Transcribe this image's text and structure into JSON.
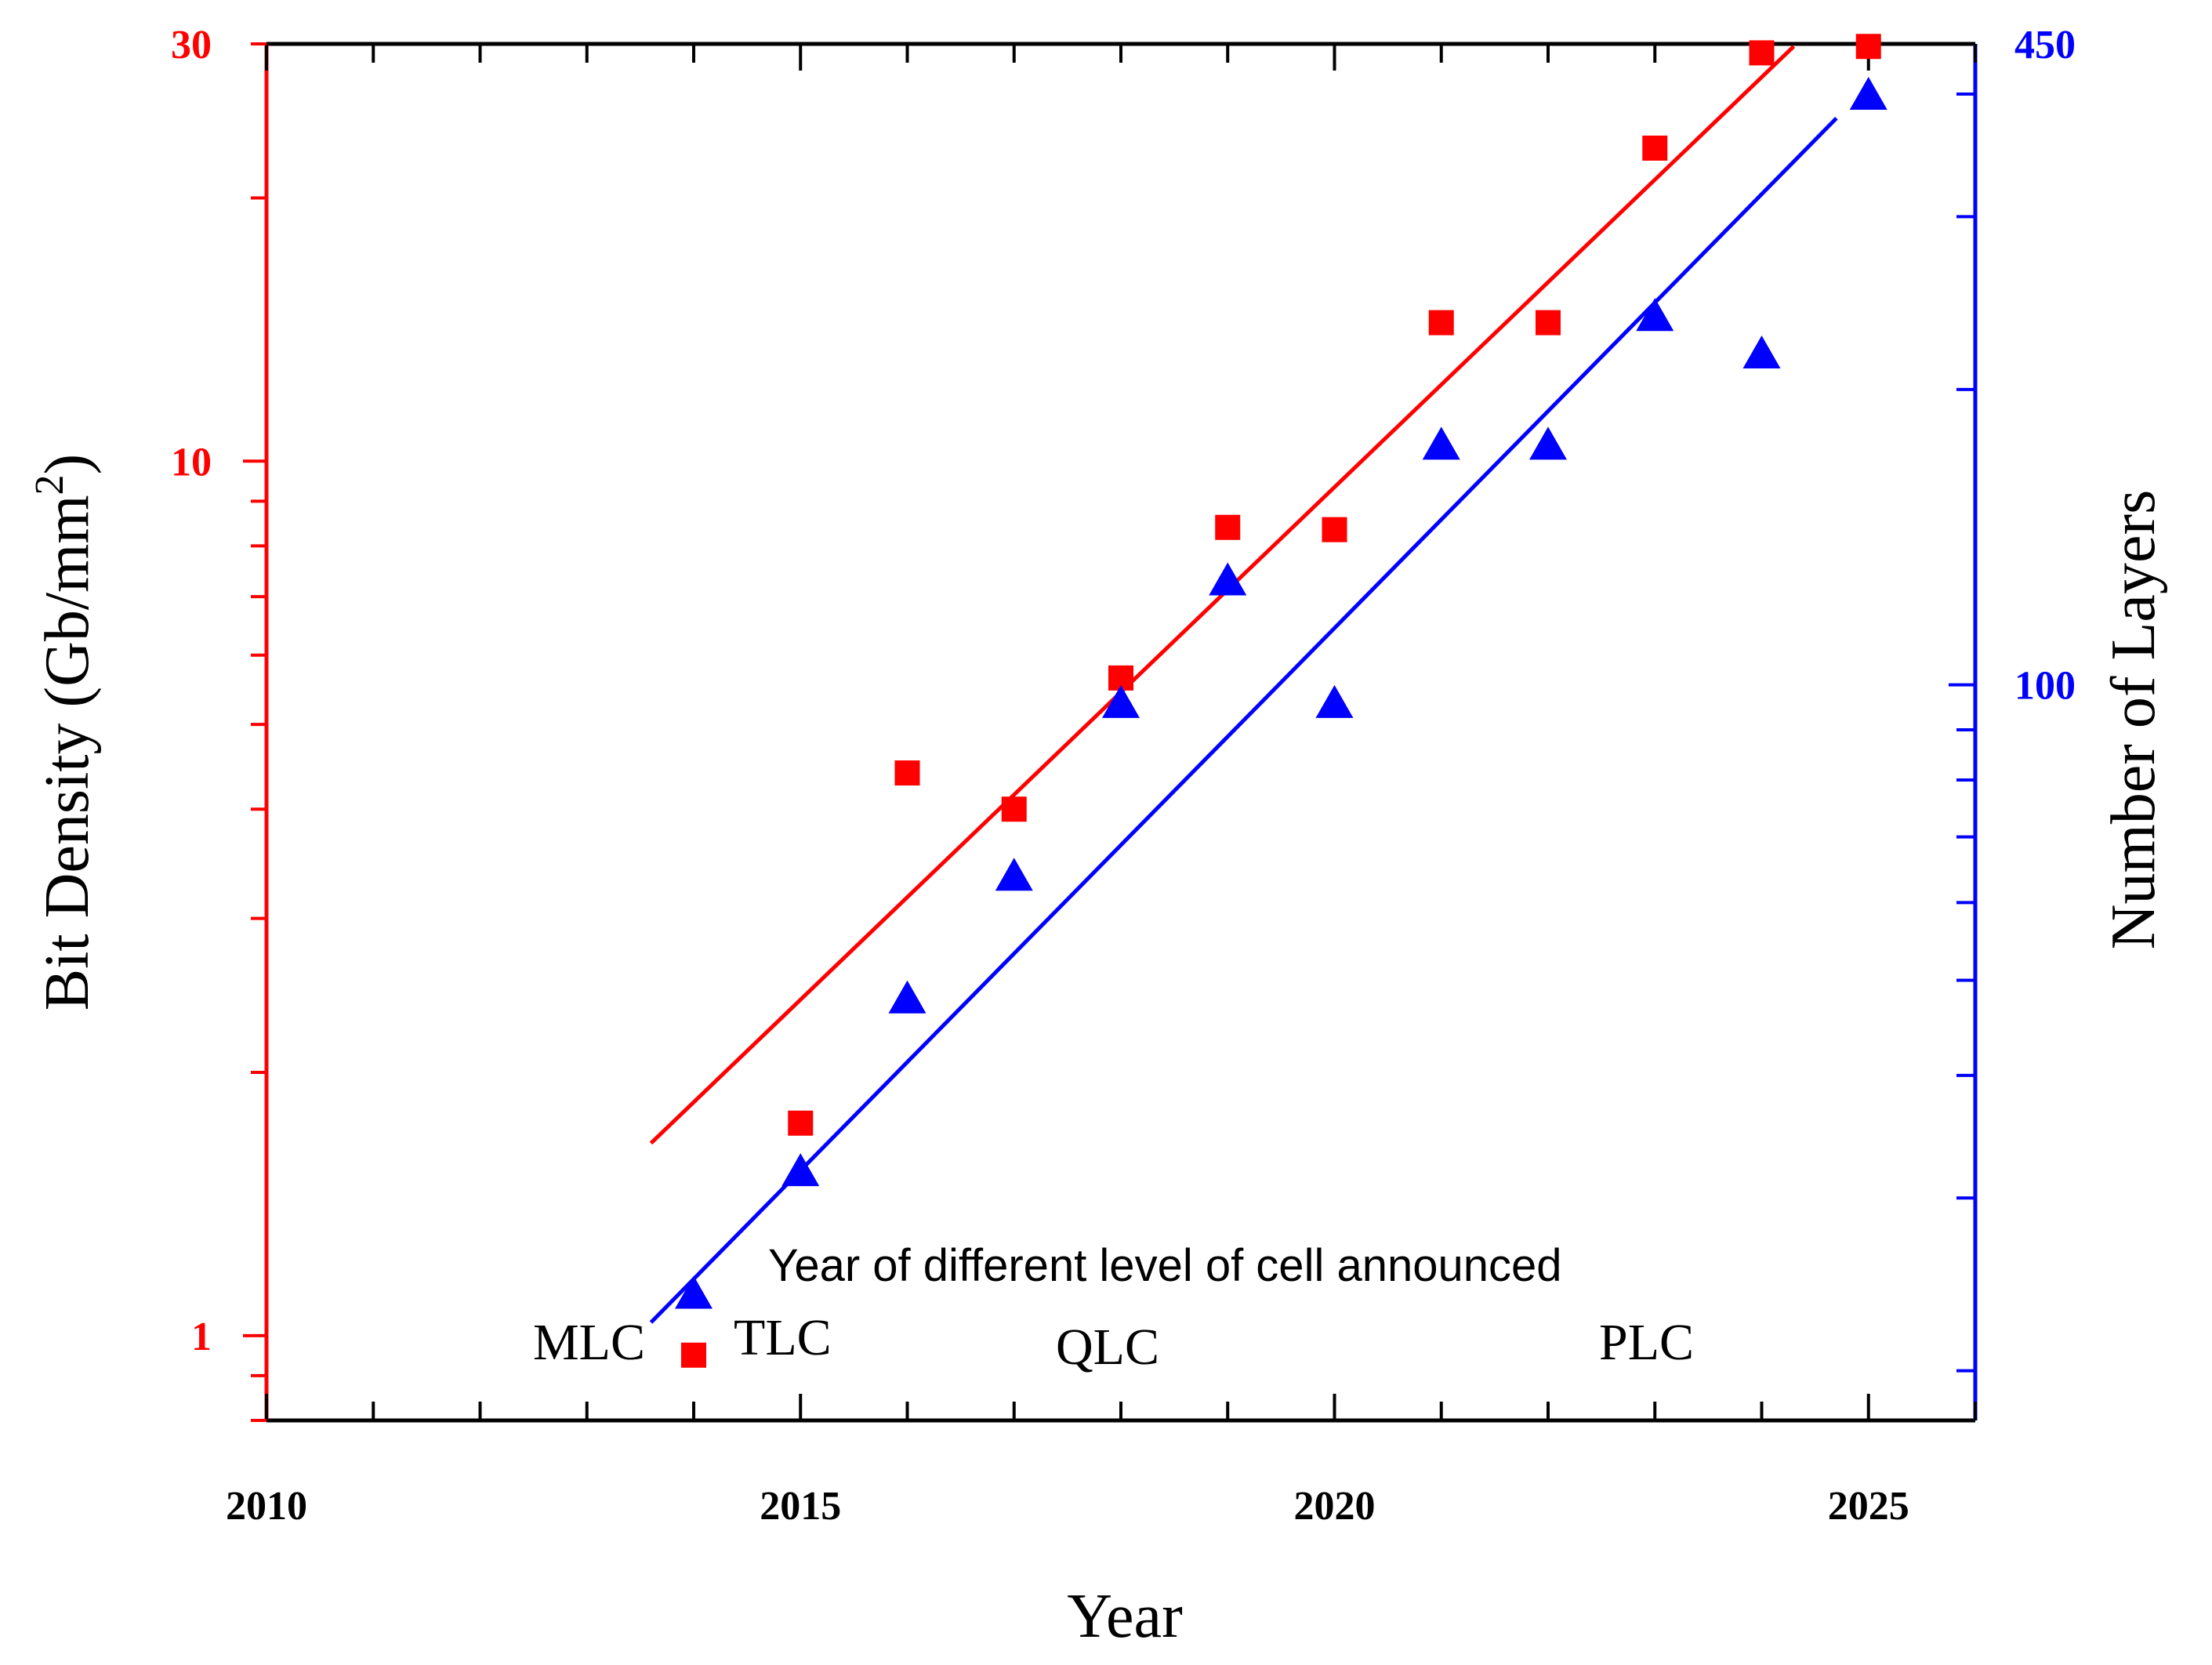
{
  "chart_data": {
    "type": "scatter",
    "xlabel": "Year",
    "xlim": [
      2010,
      2026
    ],
    "x_ticks": [
      "2010",
      "2015",
      "2020",
      "2025"
    ],
    "y_left": {
      "label_main": "Bit Density (Gb/mm",
      "label_sup": "2",
      "label_end": ")",
      "scale": "log",
      "lim": [
        0.8,
        30
      ],
      "tick_labels": [
        {
          "value": 1,
          "text": "1"
        },
        {
          "value": 10,
          "text": "10"
        },
        {
          "value": 30,
          "text": "30"
        }
      ],
      "color": "#ff0000"
    },
    "y_right": {
      "label": "Number of Layers",
      "scale": "log",
      "lim": [
        17.8,
        450
      ],
      "tick_labels": [
        {
          "value": 100,
          "text": "100"
        },
        {
          "value": 450,
          "text": "450"
        }
      ],
      "color": "#0000ff"
    },
    "series": [
      {
        "axis": "left",
        "marker": "square",
        "color": "#ff0000",
        "points": [
          [
            2014,
            0.95
          ],
          [
            2015,
            1.75
          ],
          [
            2016,
            4.4
          ],
          [
            2017,
            4.0
          ],
          [
            2018,
            5.65
          ],
          [
            2019,
            8.4
          ],
          [
            2020,
            8.35
          ],
          [
            2021,
            14.4
          ],
          [
            2022,
            14.4
          ],
          [
            2023,
            22.8
          ],
          [
            2024,
            29.3
          ],
          [
            2025,
            29.8
          ]
        ],
        "fit": {
          "x": [
            2013.6,
            2024.3
          ],
          "y": [
            1.66,
            29.8
          ]
        }
      },
      {
        "axis": "right",
        "marker": "triangle",
        "color": "#0000ff",
        "points": [
          [
            2014,
            24
          ],
          [
            2015,
            32
          ],
          [
            2016,
            48
          ],
          [
            2017,
            64
          ],
          [
            2018,
            96
          ],
          [
            2019,
            128
          ],
          [
            2020,
            96
          ],
          [
            2021,
            176
          ],
          [
            2022,
            176
          ],
          [
            2023,
            238
          ],
          [
            2024,
            218
          ],
          [
            2025,
            400
          ]
        ],
        "fit": {
          "x": [
            2013.6,
            2024.7
          ],
          "y": [
            22.4,
            378
          ]
        }
      }
    ],
    "annotations": {
      "title": "Year of different level of cell announced",
      "mlc": "MLC",
      "tlc": "TLC",
      "qlc": "QLC",
      "plc": "PLC"
    }
  }
}
